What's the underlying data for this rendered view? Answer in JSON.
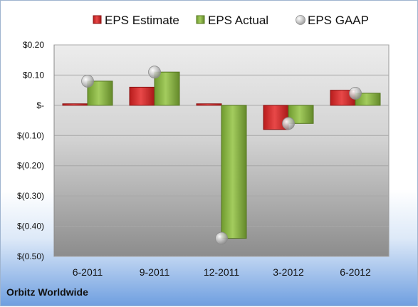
{
  "company": "Orbitz Worldwide",
  "colors": {
    "estimate": "#d42e2e",
    "actual": "#8fb94a",
    "gaap": "#bdbdbd"
  },
  "chart_data": {
    "type": "bar",
    "categories": [
      "6-2011",
      "9-2011",
      "12-2011",
      "3-2012",
      "6-2012"
    ],
    "series": [
      {
        "name": "EPS Estimate",
        "values": [
          0.005,
          0.06,
          0.005,
          -0.08,
          0.05
        ]
      },
      {
        "name": "EPS Actual",
        "values": [
          0.08,
          0.11,
          -0.44,
          -0.06,
          0.04
        ]
      },
      {
        "name": "EPS GAAP",
        "values": [
          0.08,
          0.11,
          -0.44,
          -0.06,
          0.04
        ]
      }
    ],
    "ylim": [
      -0.5,
      0.2
    ],
    "yticks": [
      0.2,
      0.1,
      0.0,
      -0.1,
      -0.2,
      -0.3,
      -0.4,
      -0.5
    ],
    "ytick_labels": [
      "$0.20",
      "$0.10",
      "$-",
      "$(0.10)",
      "$(0.20)",
      "$(0.30)",
      "$(0.40)",
      "$(0.50)"
    ],
    "legend_position": "top",
    "grid": true
  }
}
